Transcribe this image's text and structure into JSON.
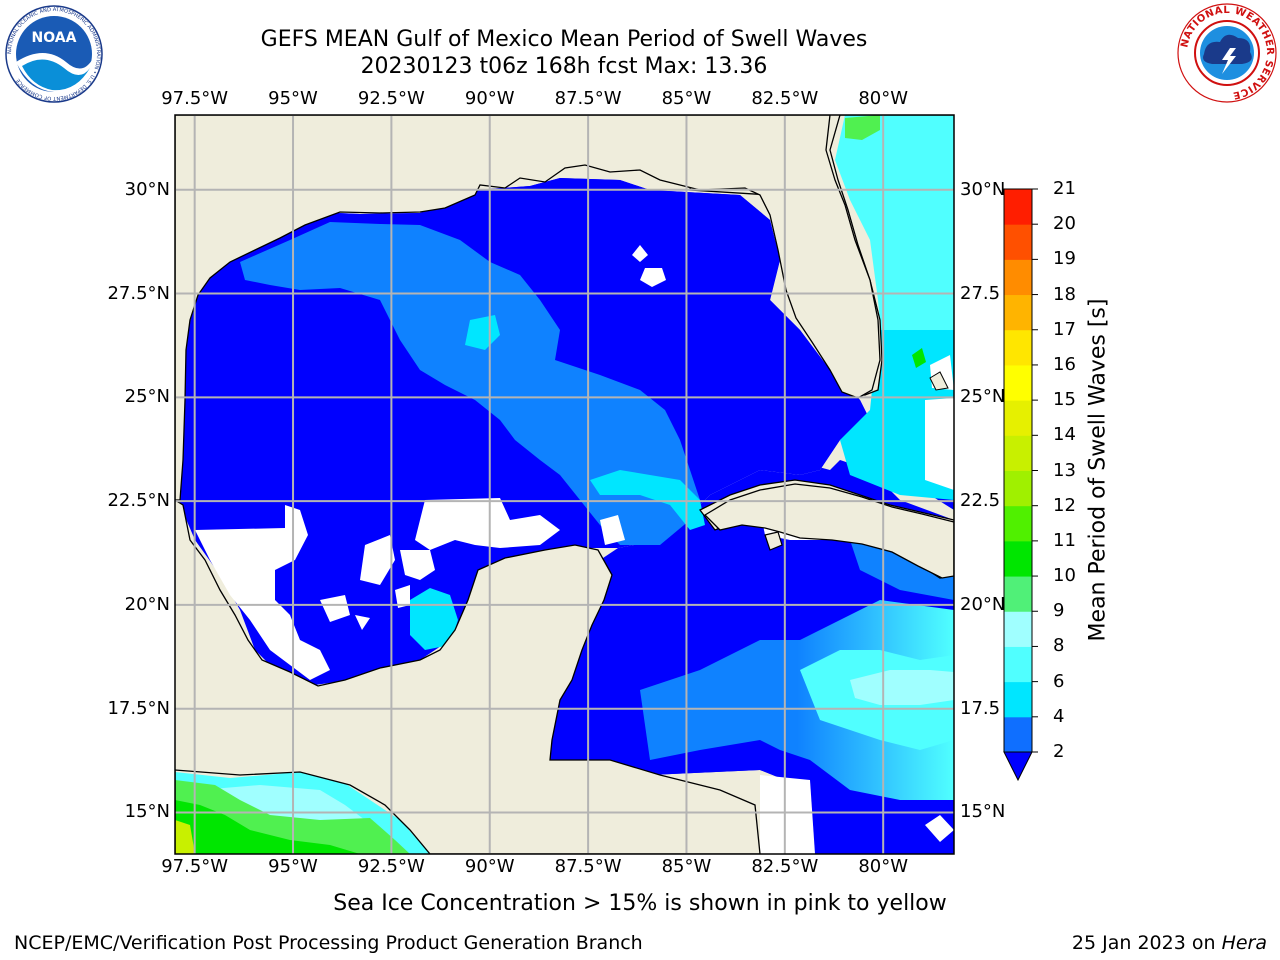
{
  "title_line1": "GEFS MEAN Gulf of Mexico Mean Period of Swell Waves",
  "title_line2": "20230123 t06z 168h fcst   Max: 13.36",
  "map": {
    "lon_labels": [
      "97.5°W",
      "95°W",
      "92.5°W",
      "90°W",
      "87.5°W",
      "85°W",
      "82.5°W",
      "80°W"
    ],
    "lat_labels": [
      "30°N",
      "27.5°N",
      "25°N",
      "22.5°N",
      "20°N",
      "17.5°N",
      "15°N"
    ],
    "lat_labels_right": [
      "30°N",
      "27.5",
      "25°N",
      "22.5",
      "20°N",
      "17.5",
      "15°N"
    ],
    "lon_values": [
      -97.5,
      -95,
      -92.5,
      -90,
      -87.5,
      -85,
      -82.5,
      -80
    ],
    "lat_values": [
      30,
      27.5,
      25,
      22.5,
      20,
      17.5,
      15
    ],
    "extent": {
      "lon_min": -98,
      "lon_max": -78.2,
      "lat_min": 14,
      "lat_max": 31.8
    },
    "land_color": "#efeddc",
    "ocean_levels": {
      "2-4": "#0000ff",
      "4-6": "#0f82ff",
      "6-8": "#00ffff",
      "8-9": "#a0ffff",
      "10-11": "#50f050"
    }
  },
  "colorbar": {
    "label": "Mean Period of Swell Waves [s]",
    "ticks": [
      "2",
      "4",
      "6",
      "8",
      "9",
      "10",
      "11",
      "12",
      "13",
      "14",
      "15",
      "16",
      "17",
      "18",
      "19",
      "20",
      "21"
    ],
    "levels": [
      2,
      4,
      6,
      8,
      9,
      10,
      11,
      12,
      13,
      14,
      15,
      16,
      17,
      18,
      19,
      20,
      21
    ],
    "colors": [
      "#0f6fff",
      "#00e6ff",
      "#50ffff",
      "#a0ffff",
      "#50f078",
      "#00e600",
      "#50f000",
      "#a0f000",
      "#c8f000",
      "#e6f000",
      "#ffff00",
      "#ffe600",
      "#ffb400",
      "#ff8c00",
      "#ff5000",
      "#ff1e00",
      "#ff0000"
    ],
    "under_color": "#0000ff"
  },
  "note": "Sea Ice Concentration > 15% is shown in pink to yellow",
  "credit": "NCEP/EMC/Verification Post Processing Product Generation Branch",
  "date": "25 Jan 2023 on",
  "machine": "Hera",
  "logos": {
    "left_text": "NOAA",
    "left_ring": "NATIONAL OCEANIC AND ATMOSPHERIC ADMINISTRATION • U.S. DEPARTMENT OF COMMERCE",
    "right_text": "NATIONAL WEATHER SERVICE"
  }
}
